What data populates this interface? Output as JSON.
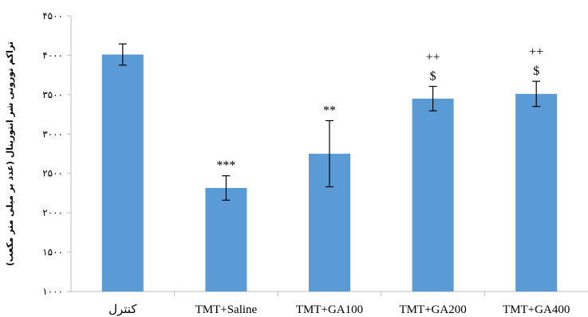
{
  "chart_data": {
    "type": "bar",
    "title": "",
    "xlabel": "",
    "ylabel": "تراکم نورونی شر انتورینال (عدد بر میلی متر مکعب)",
    "categories": [
      "کنترل",
      "TMT+Saline",
      "TMT+GA100",
      "TMT+GA200",
      "TMT+GA400"
    ],
    "values": [
      4010,
      2315,
      2750,
      3450,
      3510
    ],
    "errors": [
      135,
      155,
      420,
      155,
      160
    ],
    "significance": [
      [],
      [
        "***"
      ],
      [
        "**"
      ],
      [
        "++",
        "$"
      ],
      [
        "++",
        "$"
      ]
    ],
    "ylim": [
      1000,
      4500
    ],
    "yticks": [
      1000,
      1500,
      2000,
      2500,
      3000,
      3500,
      4000,
      4500
    ],
    "ytick_labels": [
      "۱۰۰۰",
      "۱۵۰۰",
      "۲۰۰۰",
      "۲۵۰۰",
      "۳۰۰۰",
      "۳۵۰۰",
      "۴۰۰۰",
      "۴۵۰۰"
    ],
    "grid": false,
    "colors": {
      "bar": "#5b9bd5",
      "axis": "#bfbfbf",
      "error": "#000000"
    }
  }
}
